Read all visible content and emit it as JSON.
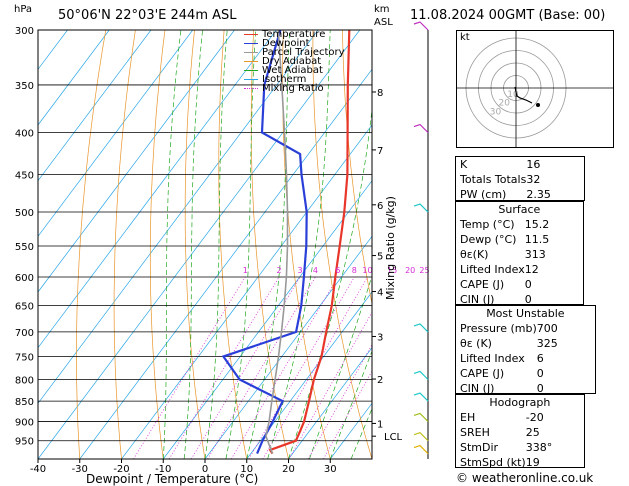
{
  "header": {
    "location": "50°06'N  22°03'E  244m  ASL",
    "valid": "11.08.2024  00GMT  (Base: 00)",
    "unit_hpa": "hPa",
    "unit_km": "km",
    "unit_asl": "ASL"
  },
  "footer": "© weatheronline.co.uk",
  "chart_data": {
    "type": "line",
    "title": "50°06'N  22°03'E  244m  ASL",
    "xlabel": "Dewpoint / Temperature (°C)",
    "ylabel": "hPa",
    "ylabel_right": "Mixing Ratio (g/kg)",
    "xlim": [
      -40,
      40
    ],
    "ylim": [
      300,
      1000
    ],
    "x_ticks": [
      -40,
      -30,
      -20,
      -10,
      0,
      10,
      20,
      30
    ],
    "pressure_levels": [
      300,
      350,
      400,
      450,
      500,
      550,
      600,
      650,
      700,
      750,
      800,
      850,
      900,
      950
    ],
    "km_ticks": [
      {
        "label": "8",
        "p": 357
      },
      {
        "label": "7",
        "p": 420
      },
      {
        "label": "6",
        "p": 490
      },
      {
        "label": "5",
        "p": 565
      },
      {
        "label": "4",
        "p": 625
      },
      {
        "label": "3",
        "p": 709
      },
      {
        "label": "2",
        "p": 799
      },
      {
        "label": "1",
        "p": 905
      }
    ],
    "lcl": {
      "label": "LCL",
      "p": 938
    },
    "mixing_ratio_labels": [
      "1",
      "2",
      "3",
      "4",
      "6",
      "8",
      "10",
      "15",
      "20",
      "25"
    ],
    "legend": [
      "Temperature",
      "Dewpoint",
      "Parcel Trajectory",
      "Dry Adiabat",
      "Wet Adiabat",
      "Isotherm",
      "Mixing Ratio"
    ],
    "series": [
      {
        "name": "Temperature",
        "color": "#e8372a",
        "points": [
          [
            985,
            15.2
          ],
          [
            975,
            14.0
          ],
          [
            950,
            18.5
          ],
          [
            925,
            17.8
          ],
          [
            900,
            17.0
          ],
          [
            850,
            14.5
          ],
          [
            800,
            11.8
          ],
          [
            750,
            9.5
          ],
          [
            700,
            6.2
          ],
          [
            650,
            2.8
          ],
          [
            600,
            -1.5
          ],
          [
            550,
            -6.0
          ],
          [
            500,
            -11.0
          ],
          [
            450,
            -17.0
          ],
          [
            400,
            -24.5
          ],
          [
            350,
            -33.0
          ],
          [
            300,
            -42.5
          ]
        ]
      },
      {
        "name": "Dewpoint",
        "color": "#2a3fd8",
        "points": [
          [
            985,
            11.5
          ],
          [
            950,
            10.5
          ],
          [
            900,
            9.5
          ],
          [
            850,
            8.2
          ],
          [
            800,
            -6.0
          ],
          [
            750,
            -14.0
          ],
          [
            700,
            -1.0
          ],
          [
            650,
            -4.5
          ],
          [
            600,
            -9.0
          ],
          [
            550,
            -14.0
          ],
          [
            500,
            -20.0
          ],
          [
            450,
            -28.0
          ],
          [
            425,
            -32.0
          ],
          [
            400,
            -45.0
          ],
          [
            350,
            -53.0
          ],
          [
            300,
            -59.0
          ]
        ]
      },
      {
        "name": "Parcel Trajectory",
        "color": "#999999",
        "points": [
          [
            985,
            15.2
          ],
          [
            938,
            10.5
          ],
          [
            900,
            8.6
          ],
          [
            850,
            5.6
          ],
          [
            800,
            2.5
          ],
          [
            750,
            -0.8
          ],
          [
            700,
            -4.5
          ],
          [
            650,
            -8.6
          ],
          [
            600,
            -13.2
          ],
          [
            550,
            -18.5
          ],
          [
            500,
            -24.6
          ],
          [
            450,
            -31.6
          ],
          [
            400,
            -39.6
          ],
          [
            350,
            -48.8
          ],
          [
            300,
            -59.5
          ]
        ]
      }
    ]
  },
  "hodograph": {
    "title": "kt",
    "rings_kt": [
      10,
      20,
      30,
      40
    ],
    "ring_labels": [
      "10",
      "20",
      "30"
    ]
  },
  "indices": [
    {
      "label": "K",
      "value": "16"
    },
    {
      "label": "Totals Totals",
      "value": "32"
    },
    {
      "label": "PW (cm)",
      "value": "2.35"
    }
  ],
  "surface": {
    "title": "Surface",
    "rows": [
      {
        "label": "Temp (°C)",
        "value": "15.2"
      },
      {
        "label": "Dewp (°C)",
        "value": "11.5"
      },
      {
        "label": "θε(K)",
        "value": "313"
      },
      {
        "label": "Lifted Index",
        "value": "12"
      },
      {
        "label": "CAPE (J)",
        "value": "0"
      },
      {
        "label": "CIN (J)",
        "value": "0"
      }
    ]
  },
  "most_unstable": {
    "title": "Most Unstable",
    "rows": [
      {
        "label": "Pressure (mb)",
        "value": "700"
      },
      {
        "label": "θε (K)",
        "value": "325"
      },
      {
        "label": "Lifted Index",
        "value": "6"
      },
      {
        "label": "CAPE (J)",
        "value": "0"
      },
      {
        "label": "CIN (J)",
        "value": "0"
      }
    ]
  },
  "hodograph_table": {
    "title": "Hodograph",
    "rows": [
      {
        "label": "EH",
        "value": "-20"
      },
      {
        "label": "SREH",
        "value": "25"
      },
      {
        "label": "StmDir",
        "value": "338°"
      },
      {
        "label": "StmSpd (kt)",
        "value": "19"
      }
    ]
  },
  "colors": {
    "temperature": "#e8372a",
    "dewpoint": "#2a3fd8",
    "parcel": "#999999",
    "dry_adiabat": "#e8952a",
    "wet_adiabat": "#21a821",
    "isotherm": "#2aa6e8",
    "mixing_ratio": "#d62ad6",
    "wind_barb": "#20c8c8"
  }
}
